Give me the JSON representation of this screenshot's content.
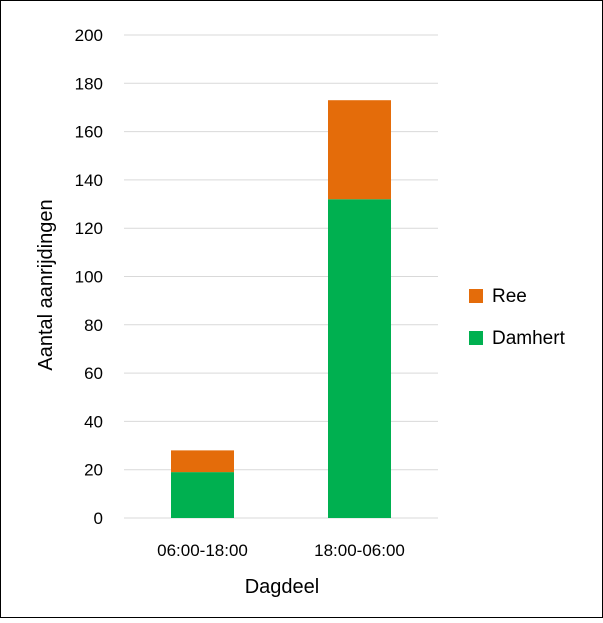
{
  "chart_data": {
    "type": "bar",
    "stacked": true,
    "categories": [
      "06:00-18:00",
      "18:00-06:00"
    ],
    "series": [
      {
        "name": "Damhert",
        "values": [
          19,
          132
        ],
        "color": "#00b050"
      },
      {
        "name": "Ree",
        "values": [
          9,
          41
        ],
        "color": "#e46c0a"
      }
    ],
    "xlabel": "Dagdeel",
    "ylabel": "Aantal aanrijdingen",
    "ylim": [
      0,
      200
    ],
    "yticks": [
      0,
      20,
      40,
      60,
      80,
      100,
      120,
      140,
      160,
      180,
      200
    ],
    "grid": true,
    "legend": {
      "position": "right",
      "order": [
        "Ree",
        "Damhert"
      ]
    }
  }
}
